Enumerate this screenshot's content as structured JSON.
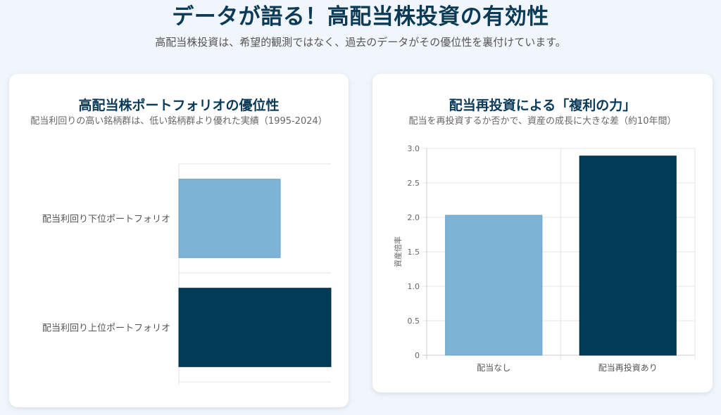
{
  "header": {
    "title": "データが語る！高配当株投資の有効性",
    "subtitle": "高配当株投資は、希望的観測ではなく、過去のデータがその優位性を裏付けています。"
  },
  "card1": {
    "title": "高配当株ポートフォリオの優位性",
    "subtitle": "配当利回りの高い銘柄群は、低い銘柄群より優れた実績（1995-2024）"
  },
  "card2": {
    "title": "配当再投資による「複利の力」",
    "subtitle": "配当を再投資するか否かで、資産の成長に大きな差（約10年間）"
  },
  "chart_data": [
    {
      "type": "bar",
      "orientation": "horizontal",
      "categories": [
        "配当利回り下位ポートフォリオ",
        "配当利回り上位ポートフォリオ"
      ],
      "values": [
        2,
        3
      ],
      "colors": [
        "#7db3d4",
        "#013b57"
      ],
      "grid": true,
      "xlim": [
        0,
        3
      ]
    },
    {
      "type": "bar",
      "orientation": "vertical",
      "categories": [
        "配当なし",
        "配当再投資あり"
      ],
      "values": [
        2.03,
        2.89
      ],
      "colors": [
        "#7db3d4",
        "#013b57"
      ],
      "ylabel": "資産倍率",
      "ylim": [
        0,
        3
      ],
      "yticks": [
        "0",
        "0.5",
        "1.0",
        "1.5",
        "2.0",
        "2.5",
        "3.0"
      ],
      "grid": true
    }
  ]
}
